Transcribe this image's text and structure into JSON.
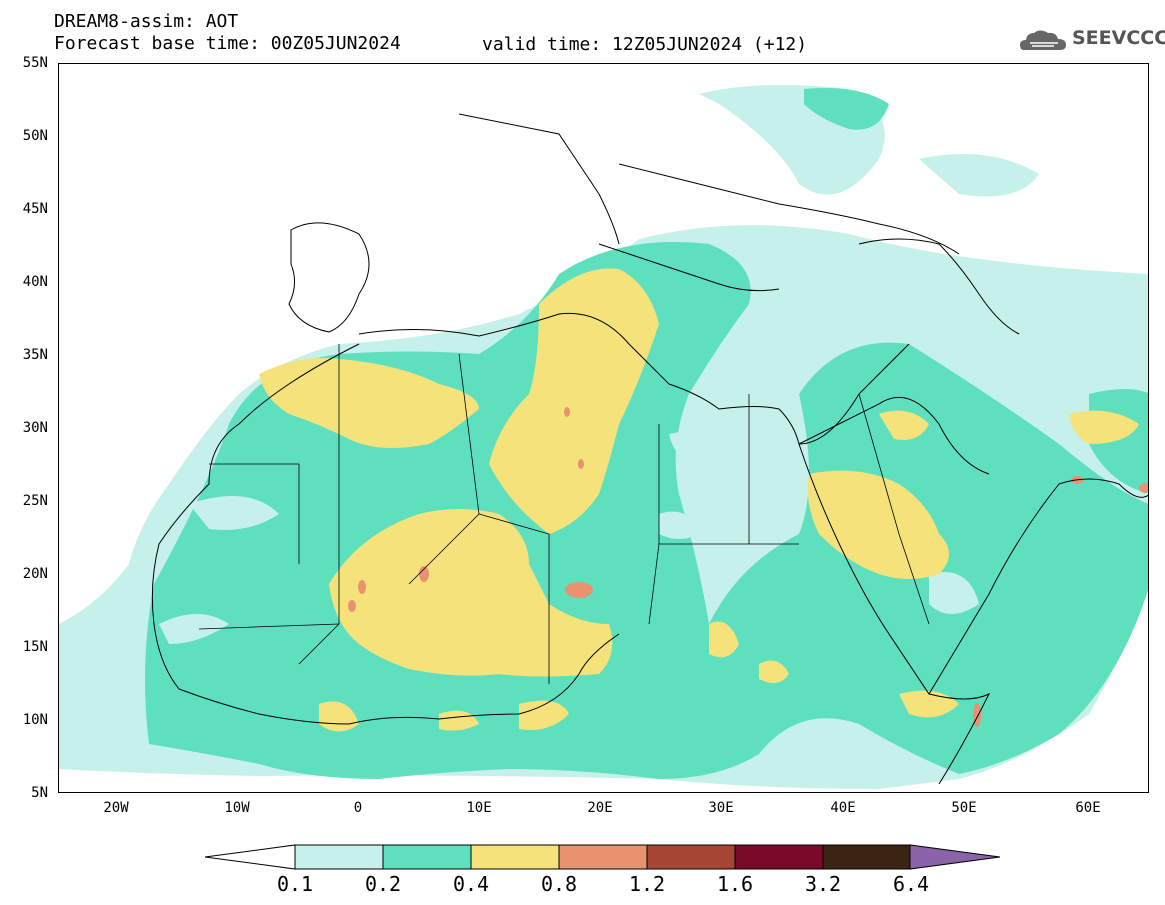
{
  "header": {
    "title": "DREAM8-assim: AOT",
    "base_time": "Forecast base time: 00Z05JUN2024",
    "valid_time": "valid time: 12Z05JUN2024 (+12)"
  },
  "logo": {
    "text": "SEEVCCC",
    "icon": "cloud-icon"
  },
  "map": {
    "projection": "cylindrical",
    "lon_range": [
      -25,
      65
    ],
    "lat_range": [
      5,
      55
    ],
    "lat_labels": [
      "55N",
      "50N",
      "45N",
      "40N",
      "35N",
      "30N",
      "25N",
      "20N",
      "15N",
      "10N",
      "5N"
    ],
    "lon_labels": [
      "20W",
      "10W",
      "0",
      "10E",
      "20E",
      "30E",
      "40E",
      "50E",
      "60E"
    ]
  },
  "colorbar": {
    "colors": [
      "#c6f0ea",
      "#5ee0bf",
      "#f6e27a",
      "#e89270",
      "#a84636",
      "#7a0a2a",
      "#3b2414",
      "#8a64a8"
    ],
    "under_color": "#ffffff",
    "labels": [
      "0.1",
      "0.2",
      "0.4",
      "0.8",
      "1.2",
      "1.6",
      "3.2",
      "6.4"
    ]
  }
}
